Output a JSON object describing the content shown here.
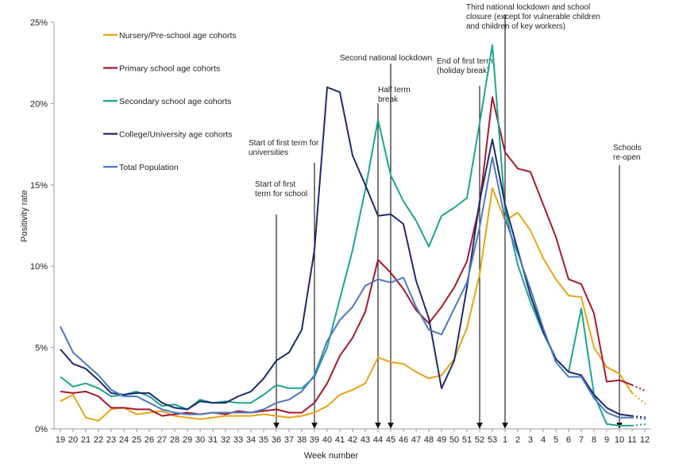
{
  "chart_data": {
    "type": "line",
    "title": "",
    "xlabel": "Week number",
    "ylabel": "Positivity rate",
    "ylim": [
      0,
      25
    ],
    "yticks": [
      "0%",
      "5%",
      "10%",
      "15%",
      "20%",
      "25%"
    ],
    "categories": [
      "19",
      "20",
      "21",
      "22",
      "23",
      "24",
      "25",
      "26",
      "27",
      "28",
      "29",
      "30",
      "31",
      "32",
      "33",
      "34",
      "35",
      "36",
      "37",
      "38",
      "39",
      "40",
      "41",
      "42",
      "43",
      "44",
      "45",
      "46",
      "47",
      "48",
      "49",
      "50",
      "51",
      "52",
      "53",
      "1",
      "2",
      "3",
      "4",
      "5",
      "6",
      "7",
      "8",
      "9",
      "10",
      "11",
      "12"
    ],
    "grid": false,
    "legend_position": "top-left",
    "series": [
      {
        "name": "Nursery/Pre-school age cohorts",
        "color": "#E8A317",
        "values": [
          1.7,
          2.1,
          0.7,
          0.5,
          1.2,
          1.3,
          0.9,
          1.0,
          1.1,
          0.8,
          0.7,
          0.6,
          0.7,
          0.8,
          0.8,
          0.8,
          0.9,
          0.8,
          0.7,
          0.8,
          1.0,
          1.4,
          2.1,
          2.4,
          2.8,
          4.4,
          4.1,
          4.0,
          3.5,
          3.1,
          3.3,
          4.3,
          6.2,
          9.5,
          14.8,
          12.8,
          13.3,
          12.2,
          10.5,
          9.2,
          8.2,
          8.1,
          5.0,
          3.8,
          3.4,
          2.2,
          null
        ],
        "dotted_tail": [
          2.2,
          1.5
        ]
      },
      {
        "name": "Primary school age cohorts",
        "color": "#A6192E",
        "values": [
          2.3,
          2.2,
          2.3,
          2.0,
          1.3,
          1.3,
          1.2,
          1.2,
          0.8,
          0.9,
          1.0,
          0.9,
          1.0,
          0.9,
          1.1,
          1.0,
          1.1,
          1.2,
          1.0,
          1.0,
          1.6,
          2.8,
          4.5,
          5.6,
          7.2,
          10.4,
          9.6,
          8.6,
          7.3,
          6.5,
          7.5,
          8.7,
          10.3,
          13.8,
          20.4,
          17.0,
          16.0,
          15.8,
          13.8,
          11.8,
          9.2,
          8.9,
          7.1,
          2.9,
          3.0,
          2.7,
          null
        ],
        "dotted_tail": [
          2.7,
          2.3
        ]
      },
      {
        "name": "Secondary school age cohorts",
        "color": "#1BA58E",
        "values": [
          3.2,
          2.6,
          2.8,
          2.5,
          2.0,
          2.1,
          2.3,
          2.0,
          1.4,
          1.5,
          1.2,
          1.8,
          1.6,
          1.7,
          1.6,
          1.6,
          2.1,
          2.7,
          2.5,
          2.5,
          3.2,
          5.0,
          8.0,
          11.0,
          14.7,
          19.0,
          15.6,
          14.0,
          12.8,
          11.2,
          13.1,
          13.6,
          14.2,
          18.8,
          23.6,
          13.5,
          10.1,
          7.8,
          5.9,
          4.3,
          3.5,
          7.4,
          2.1,
          0.3,
          0.2,
          0.2,
          null
        ],
        "dotted_tail": [
          0.2,
          0.3
        ]
      },
      {
        "name": "College/University age cohorts",
        "color": "#1F2A6B",
        "values": [
          4.9,
          4.0,
          3.7,
          3.0,
          2.2,
          2.1,
          2.2,
          2.2,
          1.6,
          1.3,
          1.2,
          1.7,
          1.6,
          1.6,
          2.0,
          2.3,
          3.1,
          4.2,
          4.7,
          6.1,
          11.0,
          21.0,
          20.7,
          16.8,
          15.0,
          13.1,
          13.2,
          12.6,
          9.1,
          6.8,
          2.5,
          4.2,
          8.7,
          14.0,
          17.8,
          13.8,
          11.0,
          8.2,
          6.0,
          4.3,
          3.5,
          3.3,
          2.1,
          1.3,
          0.9,
          0.8,
          null
        ],
        "dotted_tail": [
          0.8,
          0.7
        ]
      },
      {
        "name": "Total Population",
        "color": "#4A78C2",
        "values": [
          6.3,
          4.7,
          4.0,
          3.3,
          2.4,
          2.0,
          2.0,
          1.6,
          1.2,
          1.0,
          0.9,
          0.9,
          1.0,
          1.0,
          1.0,
          1.0,
          1.2,
          1.6,
          1.8,
          2.3,
          3.3,
          5.4,
          6.7,
          7.5,
          8.8,
          9.2,
          9.0,
          9.3,
          7.5,
          6.1,
          5.8,
          7.4,
          9.0,
          12.4,
          16.7,
          12.9,
          10.8,
          8.6,
          6.2,
          4.1,
          3.2,
          3.2,
          1.9,
          1.0,
          0.7,
          0.7,
          null
        ],
        "dotted_tail": [
          0.7,
          0.6
        ]
      }
    ],
    "annotations": [
      {
        "week": "36",
        "lines": [
          "Start of first",
          "term for school"
        ]
      },
      {
        "week": "39",
        "lines": [
          "Start of first term for",
          "universities"
        ]
      },
      {
        "week": "45",
        "lines": [
          "Second  national lockdown"
        ]
      },
      {
        "week": "44",
        "lines": [
          "Half term",
          "break"
        ]
      },
      {
        "week": "52",
        "lines": [
          "End of first term",
          "(holiday break)"
        ]
      },
      {
        "week": "1",
        "lines": [
          "Third national lockdown and school",
          "closure (except for vulnerable children",
          "and children of key workers)"
        ]
      },
      {
        "week": "10",
        "lines": [
          "Schools",
          "re-open"
        ]
      }
    ]
  }
}
